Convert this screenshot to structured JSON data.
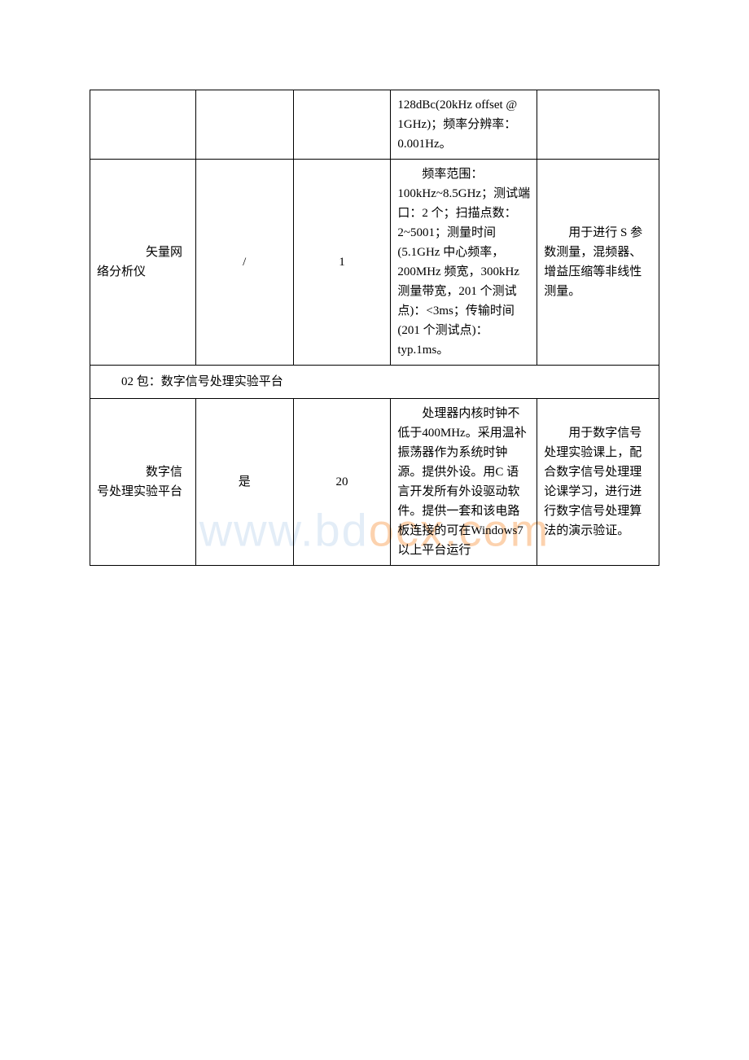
{
  "watermark": {
    "prefix": "www.bd",
    "suffix": "ocx.com"
  },
  "table": {
    "rows": [
      {
        "type": "data-continuation",
        "name": "",
        "brand": "",
        "qty": "",
        "spec": "128dBc(20kHz offset @ 1GHz)；频率分辨率：0.001Hz。",
        "use": ""
      },
      {
        "type": "data",
        "name": "矢量网络分析仪",
        "brand": "/",
        "qty": "1",
        "spec_indent": "频率范",
        "spec_rest": "围：100kHz~8.5GHz；测试端口：2 个；扫描点数：2~5001；测量时间(5.1GHz 中心频率，200MHz 频宽，300kHz测量带宽，201 个测试点)：<3ms；传输时间(201 个测试点)：typ.1ms。",
        "use_indent": "用于进",
        "use_rest": "行 S 参数测量，混频器、增益压缩等非线性测量。"
      },
      {
        "type": "section",
        "label": "02 包：数字信号处理实验平台"
      },
      {
        "type": "data",
        "name": "数字信号处理实验平台",
        "brand": "是",
        "qty": "20",
        "spec_indent": "处理器",
        "spec_rest": "内核时钟不低于400MHz。采用温补振荡器作为系统时钟源。提供外设。用C 语言开发所有外设驱动软件。提供一套和该电路板连接的可在Windows7 以上平台运行",
        "use_indent": "用于数",
        "use_rest": "字信号处理实验课上，配合数字信号处理理论课学习，进行进行数字信号处理算法的演示验证。"
      }
    ],
    "columns": {
      "name_width": 130,
      "brand_width": 120,
      "qty_width": 120,
      "spec_width": 180,
      "use_width": 150
    },
    "styling": {
      "border_color": "#000000",
      "font_size": 15,
      "line_height": 1.6,
      "text_color": "#000000",
      "background_color": "#ffffff"
    }
  }
}
